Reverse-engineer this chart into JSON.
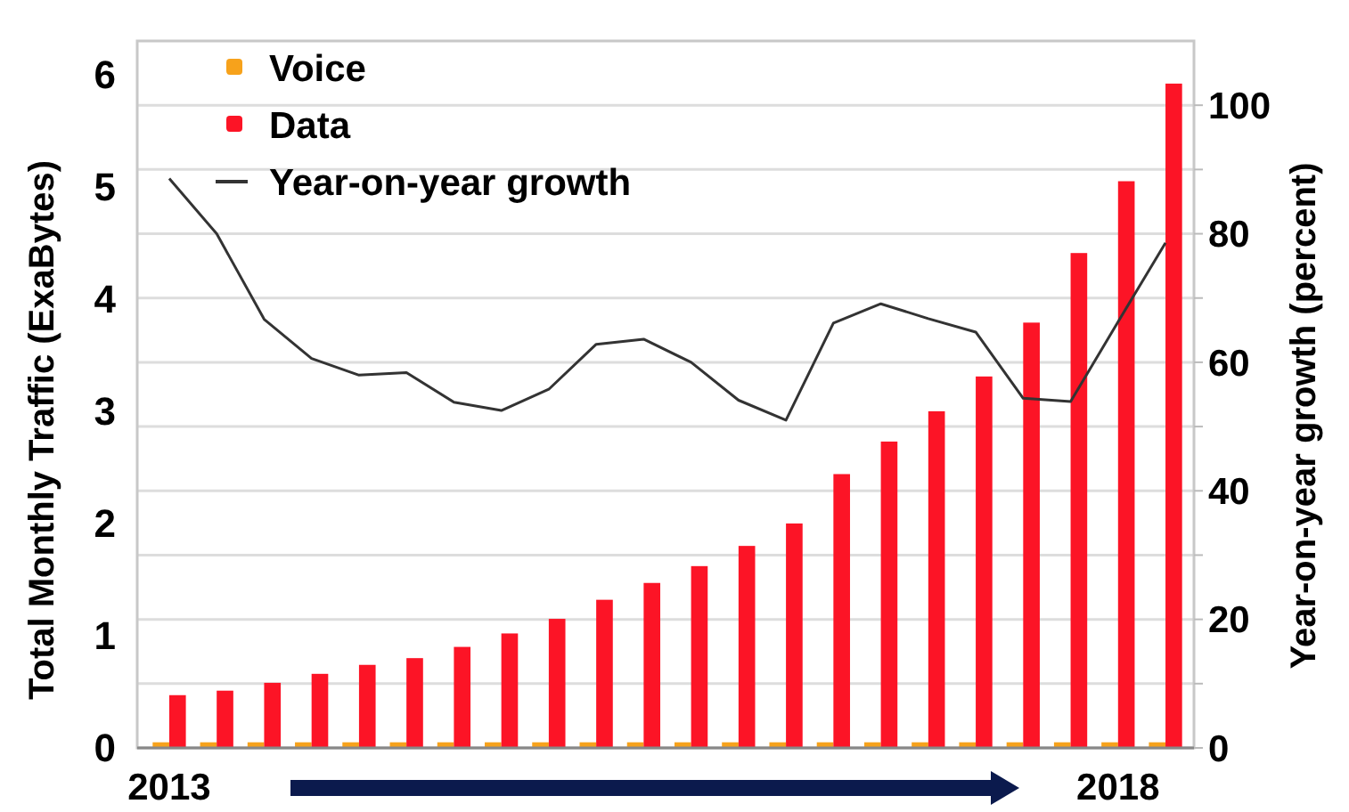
{
  "chart_data": {
    "type": "bar",
    "ylabel": "Total Monthly Traffic (ExaBytes)",
    "y2label": "Year-on-year growth (percent)",
    "categories": [
      "2013",
      null,
      null,
      null,
      null,
      null,
      null,
      null,
      null,
      null,
      null,
      null,
      null,
      null,
      null,
      null,
      null,
      null,
      null,
      null,
      "2018",
      null
    ],
    "series": [
      {
        "name": "Voice",
        "color": "#f7a21b",
        "values": [
          0.05,
          0.05,
          0.05,
          0.05,
          0.05,
          0.05,
          0.05,
          0.05,
          0.05,
          0.05,
          0.05,
          0.05,
          0.05,
          0.05,
          0.05,
          0.05,
          0.05,
          0.05,
          0.05,
          0.05,
          0.05,
          0.05
        ]
      },
      {
        "name": "Data",
        "color": "#fc1426",
        "values": [
          0.47,
          0.51,
          0.58,
          0.66,
          0.74,
          0.8,
          0.9,
          1.02,
          1.15,
          1.32,
          1.47,
          1.62,
          1.8,
          2.0,
          2.44,
          2.73,
          3.0,
          3.31,
          3.79,
          4.41,
          5.05,
          5.92
        ]
      },
      {
        "name": "Year-on-year growth",
        "type": "line",
        "axis": "y2",
        "color": "#333333",
        "values": [
          88.6,
          80,
          66.7,
          60.6,
          58,
          58.4,
          53.8,
          52.5,
          55.8,
          62.8,
          63.6,
          60,
          54.1,
          51,
          66.1,
          69.1,
          66.8,
          64.7,
          54.4,
          53.9,
          66.3,
          78.6
        ]
      }
    ],
    "ylim": [
      0,
      6.3
    ],
    "yticks": [
      0,
      1,
      2,
      3,
      4,
      5,
      6
    ],
    "y2lim": [
      0,
      110
    ],
    "y2ticks": [
      0,
      {
        "value": 10,
        "label": null
      },
      20,
      {
        "value": 30,
        "label": null
      },
      40,
      {
        "value": 50,
        "label": null
      },
      60,
      {
        "value": 70,
        "label": null
      },
      80,
      {
        "value": 90,
        "label": null
      },
      100
    ],
    "grid": true,
    "legend": "top left"
  }
}
